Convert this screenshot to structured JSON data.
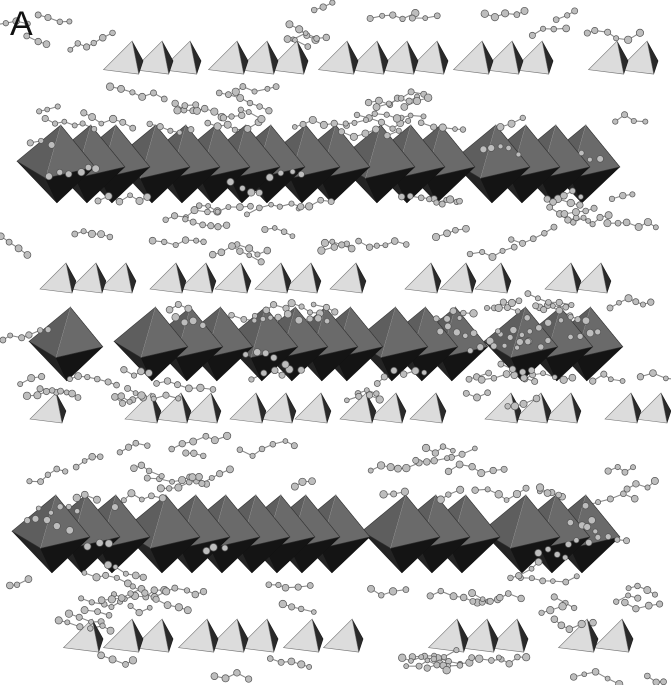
{
  "figure": {
    "panel_label": "A"
  },
  "colors": {
    "background": "#ffffff",
    "tetrahedron_light": "#dcdcdc",
    "tetrahedron_dark": "#2a2a2a",
    "octahedron_face": "#5e5e5e",
    "octahedron_shade": "#2f2f2f",
    "octahedron_dark": "#141414",
    "atom_fill": "#bdbdbd",
    "atom_stroke": "#555555",
    "bond": "#8a8a8a"
  }
}
